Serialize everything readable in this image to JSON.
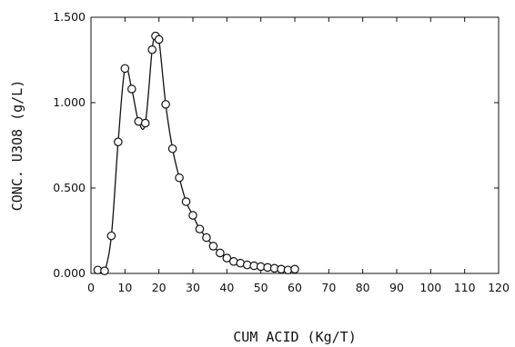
{
  "chart_data": {
    "type": "scatter",
    "title": "",
    "xlabel": "CUM ACID (Kg/T)",
    "ylabel": "CONC. U3O8 (g/L)",
    "xlim": [
      0,
      120
    ],
    "ylim": [
      0,
      1.5
    ],
    "x_ticks": [
      "0",
      "10",
      "20",
      "30",
      "40",
      "50",
      "60",
      "70",
      "80",
      "90",
      "100",
      "110",
      "120"
    ],
    "y_ticks": [
      "0.000",
      "0.500",
      "1.000",
      "1.500"
    ],
    "grid": false,
    "legend": "none",
    "marker": "open-circle",
    "line": "smooth curve through points",
    "color": "#111111",
    "series": [
      {
        "x": [
          2,
          4,
          6,
          8,
          10,
          12,
          14,
          16,
          18,
          19,
          20,
          22,
          24,
          26,
          28,
          30,
          32,
          34,
          36,
          38,
          40,
          42,
          44,
          46,
          48,
          50,
          52,
          54,
          56,
          58,
          60
        ],
        "y": [
          0.02,
          0.015,
          0.22,
          0.77,
          1.2,
          1.08,
          0.89,
          0.88,
          1.31,
          1.39,
          1.37,
          0.99,
          0.73,
          0.56,
          0.42,
          0.34,
          0.26,
          0.21,
          0.16,
          0.12,
          0.09,
          0.07,
          0.06,
          0.05,
          0.045,
          0.04,
          0.035,
          0.03,
          0.025,
          0.02,
          0.025
        ]
      }
    ]
  }
}
